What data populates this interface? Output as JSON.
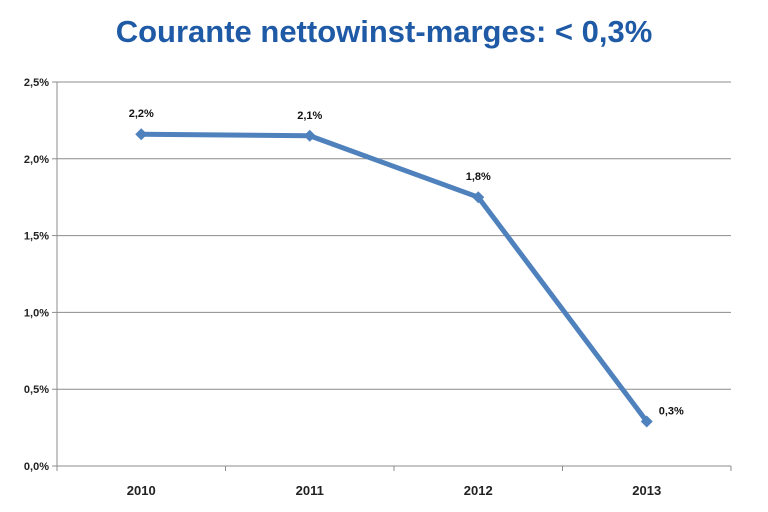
{
  "chart_data": {
    "type": "line",
    "title": "Courante nettowinst-marges: < 0,3%",
    "categories": [
      "2010",
      "2011",
      "2012",
      "2013"
    ],
    "series": [
      {
        "values": [
          2.16,
          2.15,
          1.75,
          0.29
        ],
        "data_labels": [
          "2,2%",
          "2,1%",
          "1,8%",
          "0,3%"
        ],
        "color": "#4f81bd"
      }
    ],
    "ylim": [
      0,
      2.5
    ],
    "yticks": [
      0,
      0.5,
      1.0,
      1.5,
      2.0,
      2.5
    ],
    "ytick_labels": [
      "0,0%",
      "0,5%",
      "1,0%",
      "1,5%",
      "2,0%",
      "2,5%"
    ],
    "grid": true,
    "legend": "none"
  }
}
